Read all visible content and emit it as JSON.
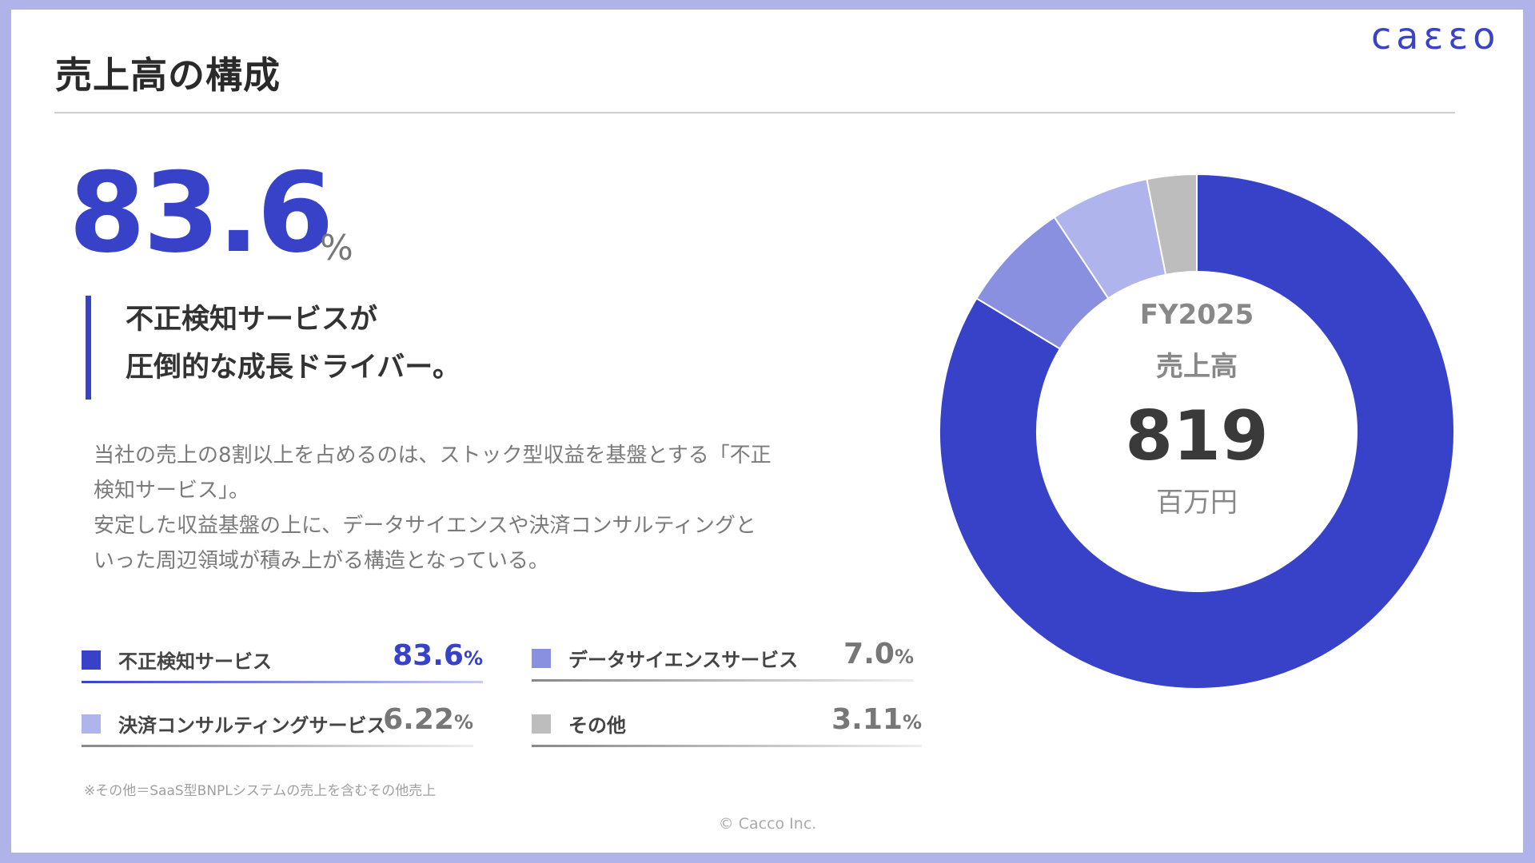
{
  "slide": {
    "title": "売上高の構成",
    "logo_text": "caεεo",
    "big_number": "83.6",
    "big_unit": "%",
    "headline": [
      "不正検知サービスが",
      "圧倒的な成長ドライバー。"
    ],
    "body": [
      "当社の売上の8割以上を占めるのは、ストック型収益を基盤とする「不正",
      "検知サービス」。",
      "安定した収益基盤の上に、データサイエンスや決済コンサルティングと",
      "いった周辺領域が積み上がる構造となっている。"
    ],
    "footnote": "※その他＝SaaS型BNPLシステムの売上を含むその他売上",
    "copyright": "© Cacco Inc.",
    "donut_center": {
      "line1": "FY2025",
      "line2": "売上高",
      "value": "819",
      "unit": "百万円"
    },
    "colors": {
      "accent": "#3742c9",
      "frame": "#afb3ea"
    }
  },
  "chart_data": {
    "type": "pie",
    "title": "売上高",
    "series": [
      {
        "name": "不正検知サービス",
        "value": 83.6,
        "value_label": "83.6",
        "unit": "%",
        "color": "#3742c9"
      },
      {
        "name": "データサイエンスサービス",
        "value": 7.0,
        "value_label": "7.0",
        "unit": "%",
        "color": "#8a90e0"
      },
      {
        "name": "決済コンサルティングサービス",
        "value": 6.22,
        "value_label": "6.22",
        "unit": "%",
        "color": "#b0b4ec"
      },
      {
        "name": "その他",
        "value": 3.11,
        "value_label": "3.11",
        "unit": "%",
        "color": "#bdbdbd"
      }
    ]
  }
}
